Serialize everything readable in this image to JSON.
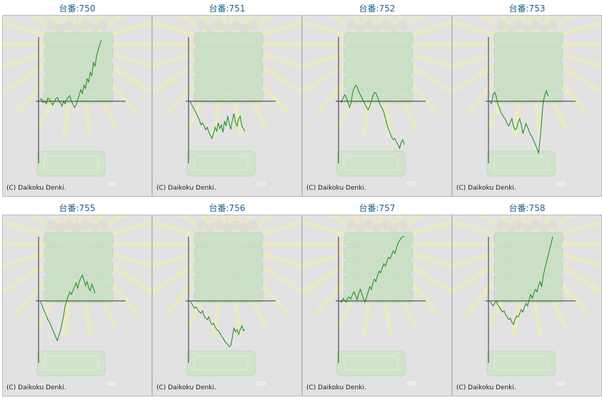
{
  "copyright": "(C) Daikoku Denki.",
  "colors": {
    "line": "#1a8a1a",
    "axis": "#333333",
    "title": "#1e5f8a",
    "panel_bg": "#e2e2e2"
  },
  "y_range": [
    -100,
    100
  ],
  "chart_data": [
    {
      "type": "line",
      "title": "台番:750",
      "values": [
        2,
        4,
        -2,
        0,
        -4,
        5,
        3,
        0,
        -6,
        -2,
        4,
        6,
        1,
        -3,
        -8,
        0,
        -4,
        3,
        6,
        9,
        0,
        -5,
        -10,
        -6,
        2,
        10,
        18,
        12,
        25,
        20,
        35,
        30,
        45,
        40,
        60,
        55,
        70,
        80,
        88,
        95
      ]
    },
    {
      "type": "line",
      "title": "台番:751",
      "values": [
        0,
        -5,
        -10,
        -14,
        -20,
        -25,
        -30,
        -38,
        -35,
        -40,
        -46,
        -42,
        -50,
        -55,
        -60,
        -52,
        -42,
        -48,
        -35,
        -44,
        -38,
        -50,
        -32,
        -40,
        -24,
        -36,
        -45,
        -30,
        -20,
        -34,
        -40,
        -28,
        -24,
        -40,
        -44,
        -48
      ]
    },
    {
      "type": "line",
      "title": "台番:752",
      "values": [
        0,
        -2,
        5,
        10,
        6,
        0,
        -10,
        -4,
        12,
        20,
        25,
        22,
        15,
        10,
        5,
        0,
        -5,
        -10,
        -14,
        -8,
        0,
        8,
        14,
        12,
        6,
        -2,
        -8,
        -12,
        -18,
        -28,
        -38,
        -45,
        -52,
        -58,
        -62,
        -60,
        -66,
        -70,
        -76,
        -66,
        -62,
        -70
      ]
    },
    {
      "type": "line",
      "title": "台番:753",
      "values": [
        0,
        -4,
        10,
        14,
        8,
        -4,
        -10,
        -18,
        -22,
        -26,
        -30,
        -36,
        -40,
        -34,
        -28,
        -40,
        -46,
        -44,
        -34,
        -28,
        -38,
        -52,
        -44,
        -36,
        -42,
        -48,
        -54,
        -58,
        -64,
        -70,
        -76,
        -84,
        -60,
        -30,
        0,
        10,
        16,
        8
      ]
    },
    {
      "type": "line",
      "title": "台番:755",
      "values": [
        0,
        -5,
        -12,
        -18,
        -24,
        -30,
        -34,
        -40,
        -46,
        -52,
        -58,
        -64,
        -56,
        -48,
        -36,
        -24,
        -8,
        0,
        8,
        14,
        10,
        16,
        22,
        28,
        20,
        30,
        36,
        40,
        32,
        24,
        30,
        20,
        16,
        26,
        20,
        12
      ]
    },
    {
      "type": "line",
      "title": "台番:756",
      "values": [
        0,
        -4,
        -8,
        -12,
        -10,
        -14,
        -18,
        -20,
        -16,
        -24,
        -28,
        -30,
        -26,
        -34,
        -38,
        -36,
        -42,
        -46,
        -48,
        -52,
        -56,
        -60,
        -64,
        -68,
        -70,
        -74,
        -72,
        -58,
        -44,
        -50,
        -46,
        -54,
        -46,
        -40,
        -48,
        -46
      ]
    },
    {
      "type": "line",
      "title": "台番:757",
      "values": [
        0,
        -2,
        4,
        0,
        -2,
        5,
        6,
        3,
        10,
        14,
        8,
        2,
        12,
        18,
        10,
        4,
        -2,
        6,
        14,
        22,
        18,
        28,
        34,
        30,
        40,
        46,
        44,
        52,
        58,
        54,
        62,
        68,
        66,
        72,
        78,
        74,
        82,
        90,
        94,
        98,
        100,
        100
      ]
    },
    {
      "type": "line",
      "title": "台番:758",
      "values": [
        0,
        -4,
        -8,
        -4,
        0,
        -6,
        -10,
        -14,
        -18,
        -16,
        -22,
        -26,
        -30,
        -28,
        -34,
        -38,
        -30,
        -24,
        -26,
        -20,
        -14,
        -18,
        -10,
        -4,
        -8,
        2,
        10,
        4,
        12,
        18,
        14,
        24,
        30,
        22,
        40,
        50,
        60,
        70,
        80,
        90,
        100
      ]
    }
  ]
}
